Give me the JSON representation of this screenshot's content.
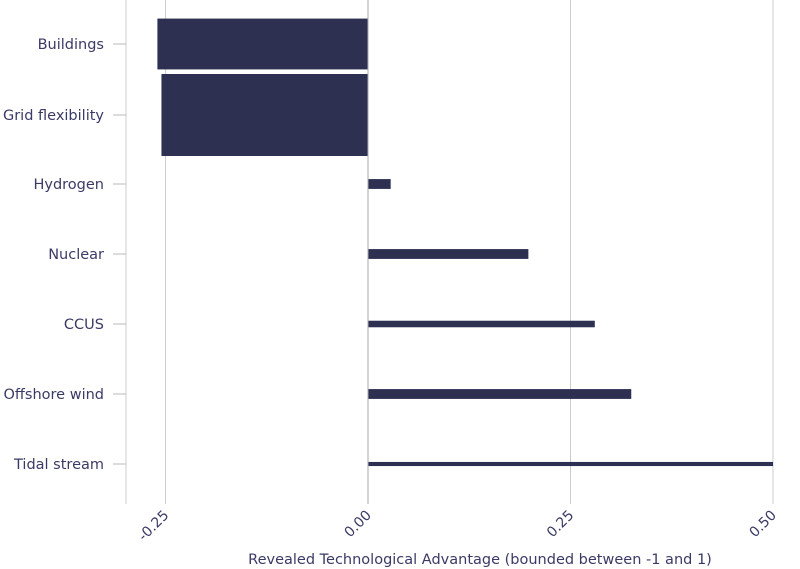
{
  "chart_data": {
    "type": "bar",
    "orientation": "horizontal",
    "categories": [
      "Buildings",
      "Grid flexibility",
      "Hydrogen",
      "Nuclear",
      "CCUS",
      "Offshore wind",
      "Tidal stream"
    ],
    "values": [
      -0.26,
      -0.255,
      0.028,
      0.198,
      0.28,
      0.325,
      0.5
    ],
    "bar_thickness_relative": [
      0.62,
      1.0,
      0.12,
      0.12,
      0.08,
      0.12,
      0.05
    ],
    "xlabel": "Revealed Technological Advantage (bounded between -1 and 1)",
    "ylabel": "",
    "xlim": [
      -0.3,
      0.5
    ],
    "xticks": [
      -0.25,
      0.0,
      0.25,
      0.5
    ],
    "xtick_labels": [
      "-0.25",
      "0.00",
      "0.25",
      "0.50"
    ],
    "grid": true,
    "bar_color": "#2e3052",
    "grid_color": "#cccccc",
    "text_color": "#3a3a66"
  }
}
